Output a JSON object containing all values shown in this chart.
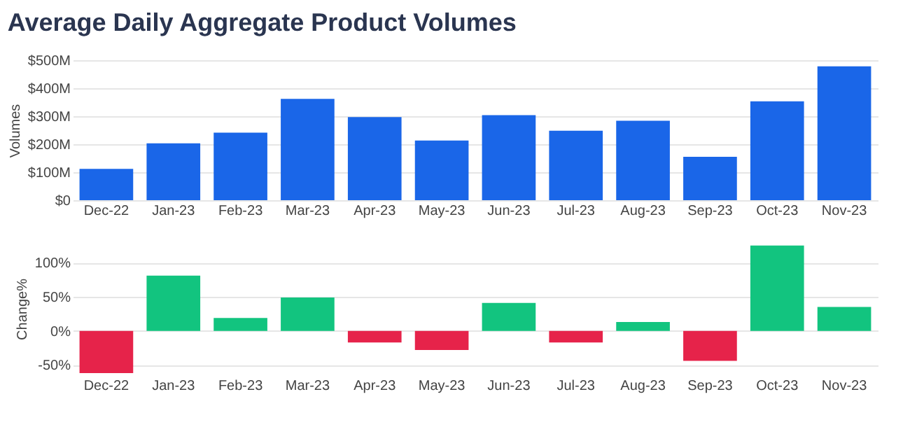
{
  "chart_data": [
    {
      "type": "bar",
      "title": "Average Daily Aggregate Product Volumes",
      "ylabel": "Volumes",
      "categories": [
        "Dec-22",
        "Jan-23",
        "Feb-23",
        "Mar-23",
        "Apr-23",
        "May-23",
        "Jun-23",
        "Jul-23",
        "Aug-23",
        "Sep-23",
        "Oct-23",
        "Nov-23"
      ],
      "values": [
        112,
        203,
        241,
        362,
        297,
        213,
        304,
        248,
        284,
        155,
        353,
        478
      ],
      "color": "#1a66e8",
      "ylim": [
        0,
        500
      ],
      "yticks": [
        {
          "value": 0,
          "label": "$0"
        },
        {
          "value": 100,
          "label": "$100M"
        },
        {
          "value": 200,
          "label": "$200M"
        },
        {
          "value": 300,
          "label": "$300M"
        },
        {
          "value": 400,
          "label": "$400M"
        },
        {
          "value": 500,
          "label": "$500M"
        }
      ],
      "grid": "y"
    },
    {
      "type": "bar",
      "ylabel": "Change%",
      "categories": [
        "Dec-22",
        "Jan-23",
        "Feb-23",
        "Mar-23",
        "Apr-23",
        "May-23",
        "Jun-23",
        "Jul-23",
        "Aug-23",
        "Sep-23",
        "Oct-23",
        "Nov-23"
      ],
      "values": [
        -62,
        81,
        19,
        49,
        -17,
        -28,
        41,
        -17,
        13,
        -44,
        125,
        35
      ],
      "colors": [
        "#e6234a",
        "#12c47f",
        "#12c47f",
        "#12c47f",
        "#e6234a",
        "#e6234a",
        "#12c47f",
        "#e6234a",
        "#12c47f",
        "#e6234a",
        "#12c47f",
        "#12c47f"
      ],
      "ylim": [
        -65,
        130
      ],
      "yticks": [
        {
          "value": -50,
          "label": "-50%"
        },
        {
          "value": 0,
          "label": "0%"
        },
        {
          "value": 50,
          "label": "50%"
        },
        {
          "value": 100,
          "label": "100%"
        }
      ],
      "grid": "y"
    }
  ]
}
